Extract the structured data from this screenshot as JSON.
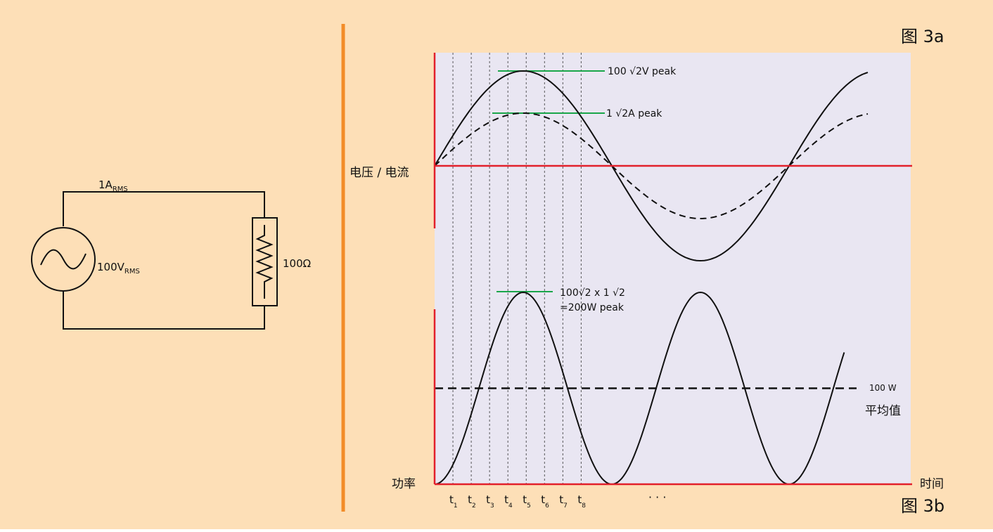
{
  "colors": {
    "background": "#fddfb7",
    "plot_area": "#e9e6f2",
    "axis": "#e2202b",
    "divider": "#f28c28",
    "reference": "#1aa64a",
    "curve": "#111111"
  },
  "circuit": {
    "current_label": "1A",
    "current_sub": "RMS",
    "source_label": "100V",
    "source_sub": "RMS",
    "resistor_label": "100Ω",
    "source_icon": "ac-source-icon",
    "resistor_icon": "resistor-icon"
  },
  "figure_a": {
    "label": "图 3a",
    "y_axis_label": "电压 / 电流",
    "voltage_peak_label": "100 √2V peak",
    "current_peak_label": "1 √2A peak"
  },
  "figure_b": {
    "label": "图 3b",
    "y_axis_label": "功率",
    "x_axis_label": "时间",
    "power_peak_line1": "100√2 x 1 √2",
    "power_peak_line2": "=200W peak",
    "average_value": "100 W",
    "average_label": "平均值",
    "ellipsis": "· · ·"
  },
  "chart_data": [
    {
      "type": "line",
      "title": "图 3a",
      "ylabel": "电压 / 电流",
      "x": [
        0,
        45,
        90,
        135,
        180,
        225,
        270,
        315,
        360,
        405,
        450
      ],
      "series": [
        {
          "values": [
            0,
            100,
            141.4,
            100,
            0,
            -100,
            -141.4,
            -100,
            0,
            100,
            141.4
          ]
        },
        {
          "values": [
            0,
            1,
            1.414,
            1,
            0,
            -1,
            -1.414,
            -1,
            0,
            1,
            1.414
          ]
        }
      ]
    },
    {
      "type": "line",
      "title": "图 3b",
      "xlabel": "时间",
      "ylabel": "功率",
      "x": [
        0,
        45,
        90,
        135,
        180,
        225,
        270,
        315,
        360,
        405,
        450
      ],
      "series": [
        {
          "values": [
            0,
            100,
            200,
            100,
            0,
            100,
            200,
            100,
            0,
            100,
            200
          ]
        }
      ],
      "average": 100,
      "peak": 200,
      "ticks": [
        {
          "letter": "t",
          "sub": "1"
        },
        {
          "letter": "t",
          "sub": "2"
        },
        {
          "letter": "t",
          "sub": "3"
        },
        {
          "letter": "t",
          "sub": "4"
        },
        {
          "letter": "t",
          "sub": "5"
        },
        {
          "letter": "t",
          "sub": "6"
        },
        {
          "letter": "t",
          "sub": "7"
        },
        {
          "letter": "t",
          "sub": "8"
        }
      ]
    }
  ]
}
